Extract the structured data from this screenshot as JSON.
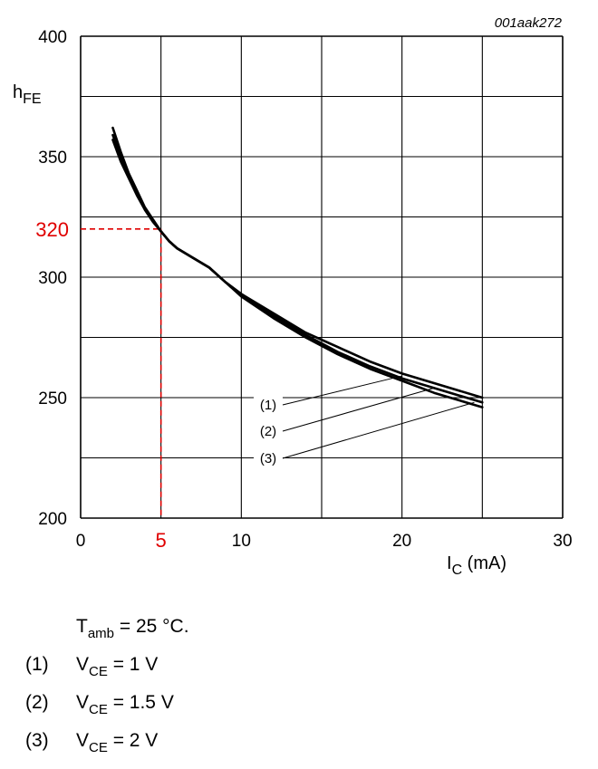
{
  "figure_code": "001aak272",
  "chart_data": {
    "type": "line",
    "title": "",
    "ylabel": {
      "main": "h",
      "sub": "FE"
    },
    "xlabel": {
      "main": "I",
      "sub": "C",
      "unit": " (mA)"
    },
    "xlim": [
      0,
      30
    ],
    "ylim": [
      200,
      400
    ],
    "x_ticks": [
      0,
      10,
      20,
      30
    ],
    "y_ticks": [
      200,
      250,
      300,
      350,
      400
    ],
    "grid": true,
    "series": [
      {
        "name": "(1)",
        "x": [
          2,
          2.5,
          3,
          3.5,
          4,
          4.5,
          5,
          5.5,
          6,
          7,
          8,
          9,
          10,
          12,
          14,
          16,
          18,
          20,
          22,
          25
        ],
        "y": [
          362,
          352,
          343,
          336,
          329,
          324,
          319,
          315,
          312,
          308,
          304,
          298,
          293,
          285,
          277,
          271,
          265,
          260,
          256,
          250
        ]
      },
      {
        "name": "(2)",
        "x": [
          2,
          2.5,
          3,
          3.5,
          4,
          4.5,
          5,
          5.5,
          6,
          7,
          8,
          9,
          10,
          12,
          14,
          16,
          18,
          20,
          22,
          25
        ],
        "y": [
          359,
          350,
          342,
          335,
          328,
          323,
          319,
          315,
          312,
          308,
          304,
          298,
          293,
          284,
          276,
          269,
          263,
          258,
          254,
          248
        ]
      },
      {
        "name": "(3)",
        "x": [
          2,
          2.5,
          3,
          3.5,
          4,
          4.5,
          5,
          5.5,
          6,
          7,
          8,
          9,
          10,
          12,
          14,
          16,
          18,
          20,
          22,
          25
        ],
        "y": [
          357,
          348,
          341,
          334,
          328,
          323,
          319,
          315,
          312,
          308,
          304,
          298,
          292,
          283,
          275,
          268,
          262,
          257,
          252,
          246
        ]
      }
    ],
    "annotation": {
      "x": 5,
      "y": 320,
      "x_label": "5",
      "y_label": "320",
      "color": "#e00000"
    },
    "callout_targets": [
      [
        20,
        259
      ],
      [
        22,
        254
      ],
      [
        24.5,
        248
      ]
    ]
  },
  "notes": {
    "ambient": {
      "prefix": "T",
      "sub": "amb",
      "suffix": " = 25 °C."
    },
    "conditions": [
      {
        "num": "(1)",
        "prefix": "V",
        "sub": "CE",
        "suffix": " = 1 V"
      },
      {
        "num": "(2)",
        "prefix": "V",
        "sub": "CE",
        "suffix": " = 1.5 V"
      },
      {
        "num": "(3)",
        "prefix": "V",
        "sub": "CE",
        "suffix": " = 2 V"
      }
    ]
  }
}
